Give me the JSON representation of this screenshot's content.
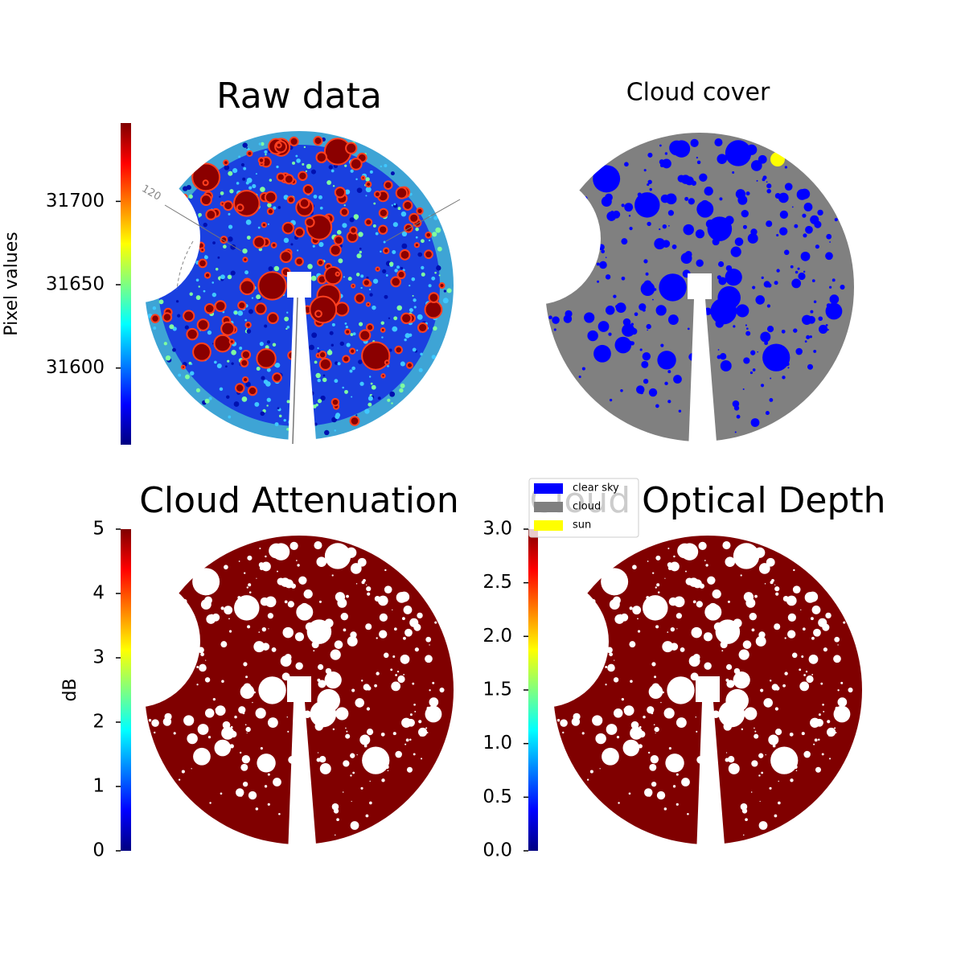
{
  "chart_data": [
    {
      "type": "image",
      "title": "Raw data",
      "colormap": "jet",
      "colorbar": {
        "label": "Pixel values",
        "lim": [
          31554,
          31747
        ],
        "ticks": [
          31600,
          31650,
          31700
        ]
      },
      "annotations": [
        "120"
      ]
    },
    {
      "type": "image",
      "title": "Cloud cover",
      "series": [
        {
          "name": "clear sky",
          "color": "#0000ff"
        },
        {
          "name": "cloud",
          "color": "#808080"
        },
        {
          "name": "sun",
          "color": "#ffff00"
        }
      ]
    },
    {
      "type": "image",
      "title": "Cloud Attenuation",
      "colormap": "jet",
      "colorbar": {
        "label": "dB",
        "lim": [
          0,
          5
        ],
        "ticks": [
          0,
          1,
          2,
          3,
          4,
          5
        ]
      }
    },
    {
      "type": "image",
      "title": "Cloud Optical Depth",
      "colormap": "jet",
      "colorbar": {
        "lim": [
          0,
          3
        ],
        "ticks": [
          {
            "value": 0,
            "label": "0.0"
          },
          0.5,
          {
            "value": 1,
            "label": "1.0"
          },
          1.5,
          {
            "value": 2,
            "label": "2.0"
          },
          2.5,
          {
            "value": 3,
            "label": "3.0"
          }
        ]
      }
    }
  ]
}
